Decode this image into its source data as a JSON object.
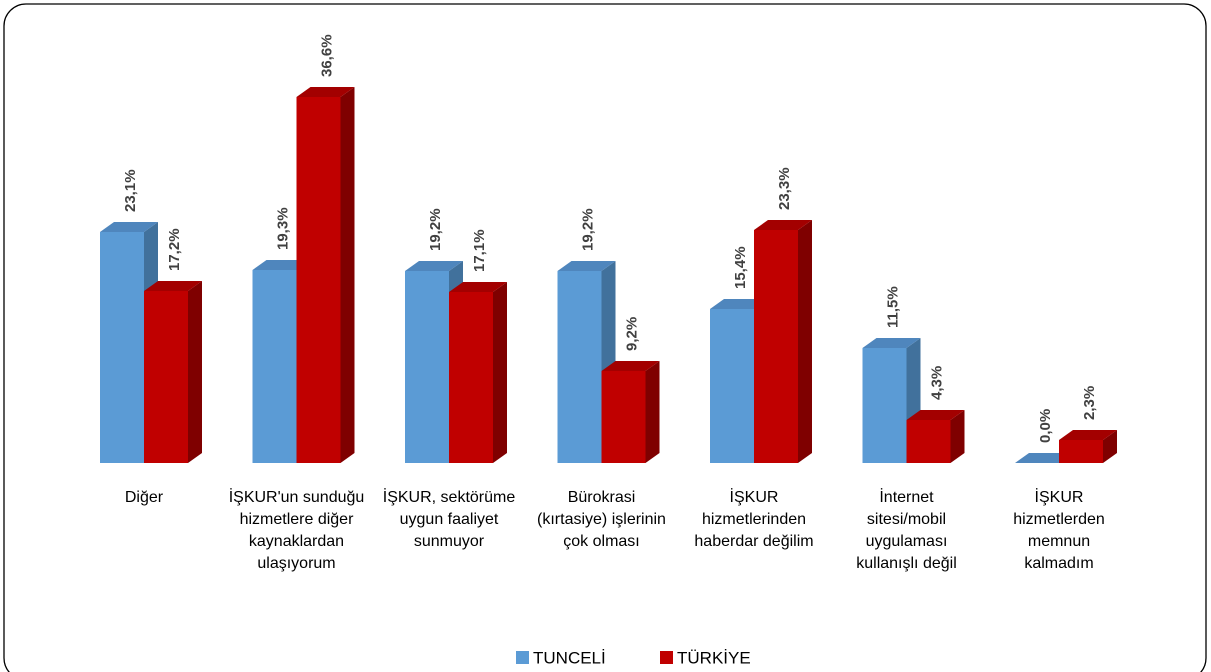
{
  "chart_data": {
    "type": "bar3d",
    "categories": [
      "Diğer",
      "İŞKUR'un sunduğu hizmetlere diğer kaynaklardan ulaşıyorum",
      "İŞKUR, sektörüme uygun faaliyet sunmuyor",
      "Bürokrasi (kırtasiye) işlerinin çok olması",
      "İŞKUR hizmetlerinden haberdar değilim",
      "İnternet sitesi/mobil uygulaması kullanışlı değil",
      "İŞKUR hizmetlerden memnun kalmadım"
    ],
    "series": [
      {
        "name": "TUNCELİ",
        "color": "#5b9bd5",
        "side": "#41719c",
        "topColor": "#4f86bd",
        "values": [
          23.1,
          19.3,
          19.2,
          19.2,
          15.4,
          11.5,
          0.0
        ],
        "value_labels": [
          "23,1%",
          "19,3%",
          "19,2%",
          "19,2%",
          "15,4%",
          "11,5%",
          "0,0%"
        ]
      },
      {
        "name": "TÜRKİYE",
        "color": "#c00000",
        "side": "#7f0000",
        "topColor": "#a30000",
        "values": [
          17.2,
          36.6,
          17.1,
          9.2,
          23.3,
          4.3,
          2.3
        ],
        "value_labels": [
          "17,2%",
          "36,6%",
          "17,1%",
          "9,2%",
          "23,3%",
          "4,3%",
          "2,3%"
        ]
      }
    ]
  }
}
